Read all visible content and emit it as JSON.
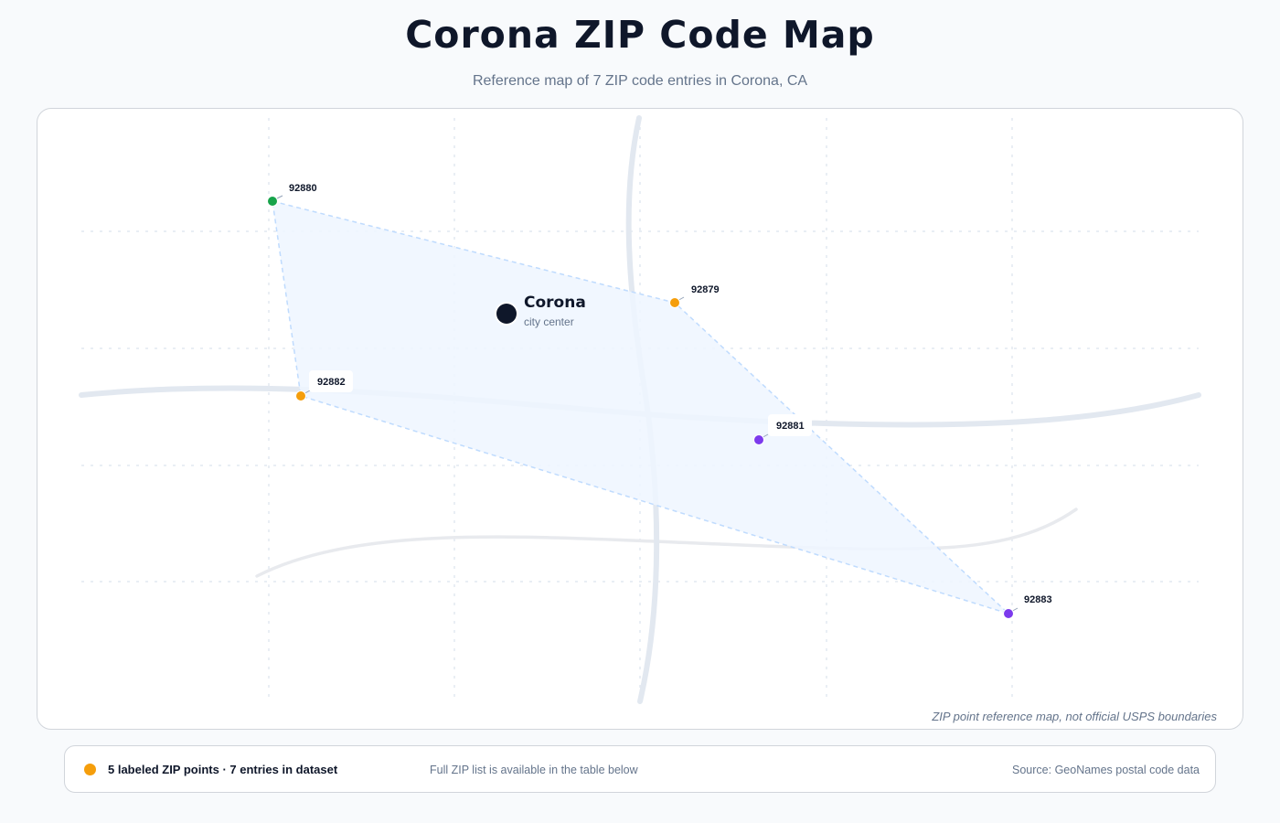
{
  "header": {
    "title": "Corona ZIP Code Map",
    "subtitle": "Reference map of 7 ZIP code entries in Corona, CA"
  },
  "map": {
    "city": {
      "name": "Corona",
      "subtitle": "city center",
      "color": "#0f172a"
    },
    "zip_points": [
      {
        "zip": "92880",
        "color": "#16a34a"
      },
      {
        "zip": "92879",
        "color": "#f59e0b"
      },
      {
        "zip": "92882",
        "color": "#f59e0b"
      },
      {
        "zip": "92881",
        "color": "#7c3aed"
      },
      {
        "zip": "92883",
        "color": "#7c3aed"
      }
    ],
    "hull_color": "#eff6ff",
    "note": "ZIP point reference map, not official USPS boundaries"
  },
  "legend": {
    "dot_color": "#f59e0b",
    "summary": "5 labeled ZIP points · 7 entries in dataset",
    "hint": "Full ZIP list is available in the table below",
    "source": "Source: GeoNames postal code data"
  }
}
